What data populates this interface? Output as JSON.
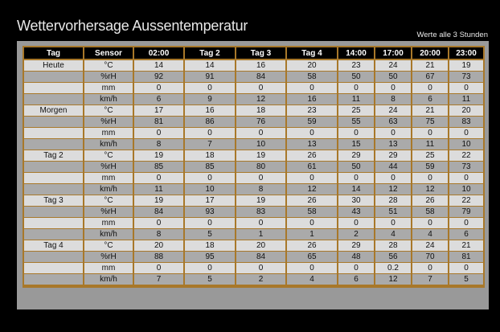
{
  "title": "Wettervorhersage Aussentemperatur",
  "subtitle": "Werte alle 3 Stunden",
  "colors": {
    "background": "#000000",
    "panel": "#999999",
    "border": "#a8782a",
    "row_light": "#dcdcdc",
    "row_dark": "#aaaaaa",
    "header_bg": "#000000"
  },
  "headers": [
    "Tag",
    "Sensor",
    "02:00",
    "Tag 2",
    "Tag 3",
    "Tag 4",
    "14:00",
    "17:00",
    "20:00",
    "23:00"
  ],
  "rows": [
    [
      "Heute",
      "°C",
      "14",
      "14",
      "16",
      "20",
      "23",
      "24",
      "21",
      "19"
    ],
    [
      "",
      "%rH",
      "92",
      "91",
      "84",
      "58",
      "50",
      "50",
      "67",
      "73"
    ],
    [
      "",
      "mm",
      "0",
      "0",
      "0",
      "0",
      "0",
      "0",
      "0",
      "0"
    ],
    [
      "",
      "km/h",
      "6",
      "9",
      "12",
      "16",
      "11",
      "8",
      "6",
      "11"
    ],
    [
      "Morgen",
      "°C",
      "17",
      "16",
      "18",
      "23",
      "25",
      "24",
      "21",
      "20"
    ],
    [
      "",
      "%rH",
      "81",
      "86",
      "76",
      "59",
      "55",
      "63",
      "75",
      "83"
    ],
    [
      "",
      "mm",
      "0",
      "0",
      "0",
      "0",
      "0",
      "0",
      "0",
      "0"
    ],
    [
      "",
      "km/h",
      "8",
      "7",
      "10",
      "13",
      "15",
      "13",
      "11",
      "10"
    ],
    [
      "Tag 2",
      "°C",
      "19",
      "18",
      "19",
      "26",
      "29",
      "29",
      "25",
      "22"
    ],
    [
      "",
      "%rH",
      "85",
      "85",
      "80",
      "61",
      "50",
      "44",
      "59",
      "73"
    ],
    [
      "",
      "mm",
      "0",
      "0",
      "0",
      "0",
      "0",
      "0",
      "0",
      "0"
    ],
    [
      "",
      "km/h",
      "11",
      "10",
      "8",
      "12",
      "14",
      "12",
      "12",
      "10"
    ],
    [
      "Tag 3",
      "°C",
      "19",
      "17",
      "19",
      "26",
      "30",
      "28",
      "26",
      "22"
    ],
    [
      "",
      "%rH",
      "84",
      "93",
      "83",
      "58",
      "43",
      "51",
      "58",
      "79"
    ],
    [
      "",
      "mm",
      "0",
      "0",
      "0",
      "0",
      "0",
      "0",
      "0",
      "0"
    ],
    [
      "",
      "km/h",
      "8",
      "5",
      "1",
      "1",
      "2",
      "4",
      "4",
      "6"
    ],
    [
      "Tag 4",
      "°C",
      "20",
      "18",
      "20",
      "26",
      "29",
      "28",
      "24",
      "21"
    ],
    [
      "",
      "%rH",
      "88",
      "95",
      "84",
      "65",
      "48",
      "56",
      "70",
      "81"
    ],
    [
      "",
      "mm",
      "0",
      "0",
      "0",
      "0",
      "0",
      "0.2",
      "0",
      "0"
    ],
    [
      "",
      "km/h",
      "7",
      "5",
      "2",
      "4",
      "6",
      "12",
      "7",
      "5"
    ]
  ]
}
